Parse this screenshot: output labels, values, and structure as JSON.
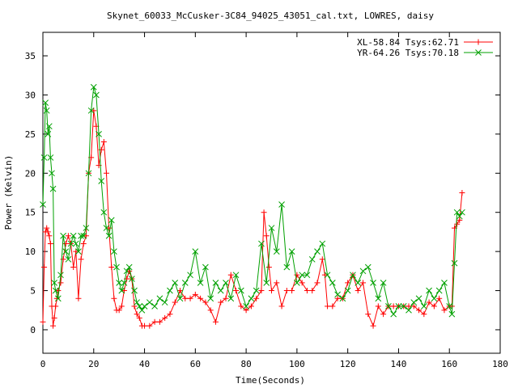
{
  "chart_data": {
    "type": "line",
    "title": "Skynet_60033_McCusker-3C84_94025_43051_cal.txt, LOWRES, daisy",
    "xlabel": "Time(Seconds)",
    "ylabel": "Power (Kelvin)",
    "xlim": [
      0,
      180
    ],
    "ylim": [
      -3,
      38
    ],
    "xticks": [
      0,
      20,
      40,
      60,
      80,
      100,
      120,
      140,
      160,
      180
    ],
    "yticks": [
      0,
      5,
      10,
      15,
      20,
      25,
      30,
      35
    ],
    "grid": false,
    "legend_position": "top-right",
    "series": [
      {
        "name": "XL-58.84 Tsys:62.71",
        "color": "#ff0000",
        "marker": "plus",
        "x": [
          0,
          0.5,
          1,
          1.5,
          2,
          2.5,
          3,
          3.5,
          4,
          4.5,
          5,
          5.5,
          6,
          7,
          8,
          9,
          10,
          11,
          12,
          13,
          14,
          15,
          16,
          17,
          18,
          19,
          20,
          21,
          22,
          23,
          24,
          25,
          26,
          27,
          28,
          29,
          30,
          31,
          32,
          33,
          34,
          35,
          36,
          37,
          38,
          39,
          40,
          42,
          44,
          46,
          48,
          50,
          52,
          54,
          56,
          58,
          60,
          62,
          64,
          66,
          68,
          70,
          72,
          74,
          76,
          78,
          80,
          82,
          84,
          86,
          87,
          88,
          89,
          90,
          92,
          94,
          96,
          98,
          100,
          102,
          104,
          106,
          108,
          110,
          111,
          112,
          114,
          116,
          118,
          120,
          122,
          124,
          126,
          128,
          130,
          132,
          134,
          136,
          138,
          140,
          142,
          144,
          146,
          148,
          150,
          152,
          154,
          156,
          158,
          160,
          161,
          162,
          163,
          164,
          165
        ],
        "values": [
          1,
          8,
          12.5,
          13,
          12.5,
          12,
          11,
          3,
          0.5,
          1.5,
          3,
          4,
          5,
          6,
          9,
          11,
          12,
          11,
          8,
          10,
          4,
          9,
          11,
          12,
          20,
          22,
          28,
          26,
          21,
          23,
          24,
          20,
          13,
          8,
          4,
          2.5,
          2.5,
          3,
          5,
          6.5,
          7.5,
          6.5,
          3,
          2,
          1.5,
          0.5,
          0.5,
          0.5,
          1,
          1,
          1.5,
          2,
          3.5,
          5,
          4,
          4,
          4.5,
          4,
          3.5,
          2.5,
          1,
          3.5,
          4,
          7,
          5,
          3,
          2.5,
          3,
          4,
          5,
          15,
          12,
          8,
          5,
          6,
          3,
          5,
          5,
          7,
          6,
          5,
          5,
          6,
          9,
          7,
          3,
          3,
          4,
          4,
          6,
          7,
          5,
          6,
          2,
          0.5,
          3,
          2,
          3,
          3,
          3,
          3,
          3,
          3,
          2.5,
          2,
          3.5,
          3,
          4,
          2.5,
          3,
          3,
          13,
          13.5,
          14,
          17.5
        ]
      },
      {
        "name": "YR-64.26 Tsys:70.18",
        "color": "#00a000",
        "marker": "cross",
        "x": [
          0,
          0.5,
          1,
          1.5,
          2,
          2.5,
          3,
          3.5,
          4,
          4.5,
          5,
          6,
          7,
          8,
          9,
          10,
          11,
          12,
          13,
          14,
          15,
          16,
          17,
          18,
          19,
          20,
          21,
          22,
          23,
          24,
          25,
          26,
          27,
          28,
          29,
          30,
          31,
          32,
          33,
          34,
          35,
          36,
          37,
          38,
          39,
          40,
          42,
          44,
          46,
          48,
          50,
          52,
          54,
          56,
          58,
          60,
          62,
          64,
          66,
          68,
          70,
          72,
          74,
          76,
          78,
          80,
          82,
          84,
          86,
          88,
          90,
          92,
          94,
          96,
          98,
          100,
          102,
          104,
          106,
          108,
          110,
          112,
          114,
          116,
          118,
          120,
          122,
          124,
          126,
          128,
          130,
          132,
          134,
          136,
          138,
          140,
          142,
          144,
          146,
          148,
          150,
          152,
          154,
          156,
          158,
          160,
          161,
          162,
          163,
          164,
          165
        ],
        "values": [
          16,
          22,
          29,
          28,
          25,
          26,
          22,
          20,
          18,
          6,
          5,
          4,
          7,
          12,
          10,
          9,
          11,
          12,
          11,
          10,
          12,
          12,
          13,
          20,
          28,
          31,
          30,
          25,
          19,
          15,
          13,
          12,
          14,
          10,
          8,
          6,
          5,
          6,
          7.5,
          8,
          6.5,
          5,
          3.5,
          3,
          2.5,
          3,
          3.5,
          3,
          4,
          3.5,
          5,
          6,
          4,
          6,
          7,
          10,
          6,
          8,
          4,
          6,
          5,
          6,
          4,
          7,
          5,
          3,
          4,
          5,
          11,
          6,
          13,
          10,
          16,
          8,
          10,
          6,
          7,
          7,
          9,
          10,
          11,
          7,
          6,
          4.5,
          4,
          5,
          7,
          6,
          7.5,
          8,
          6,
          4,
          6,
          3,
          2,
          3,
          3,
          2.5,
          3.5,
          4,
          3,
          5,
          4,
          5,
          6,
          3,
          2,
          8.5,
          15,
          14.5,
          15
        ]
      }
    ]
  }
}
